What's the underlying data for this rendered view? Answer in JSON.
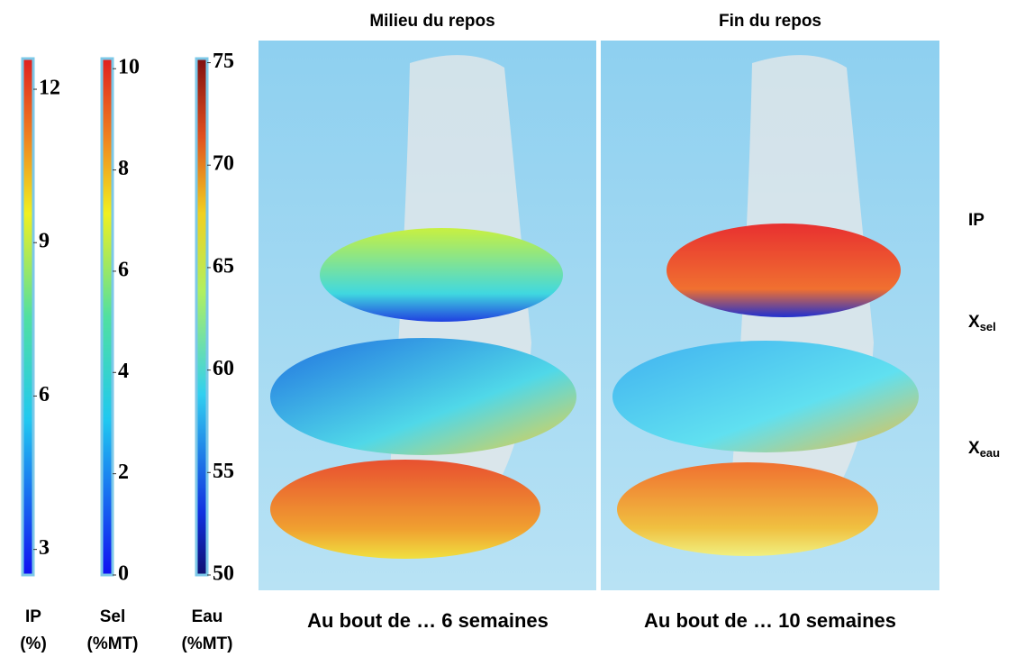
{
  "colorbars": [
    {
      "ticks": [
        3,
        6,
        9,
        12
      ],
      "range": [
        2.5,
        12.6
      ],
      "label": [
        "IP",
        "(%)"
      ]
    },
    {
      "ticks": [
        0,
        2,
        4,
        6,
        8,
        10
      ],
      "range": [
        0,
        10.2
      ],
      "label": [
        "Sel",
        "(%MT)"
      ]
    },
    {
      "ticks": [
        50,
        55,
        60,
        65,
        70,
        75
      ],
      "range": [
        50,
        75.2
      ],
      "label": [
        "Eau",
        "(%MT)"
      ]
    }
  ],
  "panels": [
    {
      "title": "Milieu du repos",
      "caption": "Au bout de … 6 semaines"
    },
    {
      "title": "Fin du repos",
      "caption": "Au bout de … 10 semaines"
    }
  ],
  "row_labels": [
    {
      "main": "IP"
    },
    {
      "main": "X",
      "sub": "sel"
    },
    {
      "main": "X",
      "sub": "eau"
    }
  ]
}
